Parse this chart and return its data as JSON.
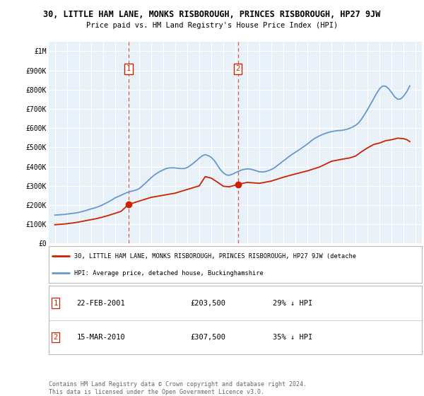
{
  "title": "30, LITTLE HAM LANE, MONKS RISBOROUGH, PRINCES RISBOROUGH, HP27 9JW",
  "subtitle": "Price paid vs. HM Land Registry's House Price Index (HPI)",
  "background_color": "#ffffff",
  "plot_bg_color": "#e8f0f8",
  "grid_color": "#ffffff",
  "ylim": [
    0,
    1050000
  ],
  "yticks": [
    0,
    100000,
    200000,
    300000,
    400000,
    500000,
    600000,
    700000,
    800000,
    900000,
    1000000
  ],
  "ytick_labels": [
    "£0",
    "£100K",
    "£200K",
    "£300K",
    "£400K",
    "£500K",
    "£600K",
    "£700K",
    "£800K",
    "£900K",
    "£1M"
  ],
  "xlim_start": 1994.5,
  "xlim_end": 2025.5,
  "xticks": [
    1995,
    1996,
    1997,
    1998,
    1999,
    2000,
    2001,
    2002,
    2003,
    2004,
    2005,
    2006,
    2007,
    2008,
    2009,
    2010,
    2011,
    2012,
    2013,
    2014,
    2015,
    2016,
    2017,
    2018,
    2019,
    2020,
    2021,
    2022,
    2023,
    2024,
    2025
  ],
  "hpi_color": "#6699cc",
  "price_color": "#cc2200",
  "vline_color": "#cc2200",
  "marker1_x": 2001.13,
  "marker1_y": 203500,
  "marker2_x": 2010.21,
  "marker2_y": 307500,
  "legend_price_label": "30, LITTLE HAM LANE, MONKS RISBOROUGH, PRINCES RISBOROUGH, HP27 9JW (detache",
  "legend_hpi_label": "HPI: Average price, detached house, Buckinghamshire",
  "annot1_label": "1",
  "annot2_label": "2",
  "table_row1": [
    "1",
    "22-FEB-2001",
    "£203,500",
    "29% ↓ HPI"
  ],
  "table_row2": [
    "2",
    "15-MAR-2010",
    "£307,500",
    "35% ↓ HPI"
  ],
  "footer": "Contains HM Land Registry data © Crown copyright and database right 2024.\nThis data is licensed under the Open Government Licence v3.0.",
  "hpi_x": [
    1995.0,
    1995.25,
    1995.5,
    1995.75,
    1996.0,
    1996.25,
    1996.5,
    1996.75,
    1997.0,
    1997.25,
    1997.5,
    1997.75,
    1998.0,
    1998.25,
    1998.5,
    1998.75,
    1999.0,
    1999.25,
    1999.5,
    1999.75,
    2000.0,
    2000.25,
    2000.5,
    2000.75,
    2001.0,
    2001.25,
    2001.5,
    2001.75,
    2002.0,
    2002.25,
    2002.5,
    2002.75,
    2003.0,
    2003.25,
    2003.5,
    2003.75,
    2004.0,
    2004.25,
    2004.5,
    2004.75,
    2005.0,
    2005.25,
    2005.5,
    2005.75,
    2006.0,
    2006.25,
    2006.5,
    2006.75,
    2007.0,
    2007.25,
    2007.5,
    2007.75,
    2008.0,
    2008.25,
    2008.5,
    2008.75,
    2009.0,
    2009.25,
    2009.5,
    2009.75,
    2010.0,
    2010.25,
    2010.5,
    2010.75,
    2011.0,
    2011.25,
    2011.5,
    2011.75,
    2012.0,
    2012.25,
    2012.5,
    2012.75,
    2013.0,
    2013.25,
    2013.5,
    2013.75,
    2014.0,
    2014.25,
    2014.5,
    2014.75,
    2015.0,
    2015.25,
    2015.5,
    2015.75,
    2016.0,
    2016.25,
    2016.5,
    2016.75,
    2017.0,
    2017.25,
    2017.5,
    2017.75,
    2018.0,
    2018.25,
    2018.5,
    2018.75,
    2019.0,
    2019.25,
    2019.5,
    2019.75,
    2020.0,
    2020.25,
    2020.5,
    2020.75,
    2021.0,
    2021.25,
    2021.5,
    2021.75,
    2022.0,
    2022.25,
    2022.5,
    2022.75,
    2023.0,
    2023.25,
    2023.5,
    2023.75,
    2024.0,
    2024.25,
    2024.5
  ],
  "hpi_y": [
    148000,
    149000,
    150000,
    151000,
    153000,
    155000,
    157000,
    159000,
    162000,
    166000,
    170000,
    175000,
    180000,
    184000,
    189000,
    195000,
    202000,
    210000,
    218000,
    227000,
    237000,
    244000,
    251000,
    258000,
    265000,
    270000,
    274000,
    278000,
    285000,
    298000,
    312000,
    327000,
    342000,
    355000,
    366000,
    375000,
    383000,
    390000,
    393000,
    394000,
    393000,
    391000,
    390000,
    390000,
    395000,
    405000,
    417000,
    430000,
    444000,
    456000,
    462000,
    457000,
    448000,
    432000,
    408000,
    385000,
    368000,
    357000,
    355000,
    360000,
    368000,
    375000,
    382000,
    386000,
    388000,
    387000,
    383000,
    378000,
    373000,
    372000,
    374000,
    379000,
    385000,
    394000,
    406000,
    418000,
    430000,
    442000,
    454000,
    465000,
    475000,
    485000,
    496000,
    507000,
    518000,
    531000,
    543000,
    552000,
    560000,
    567000,
    573000,
    578000,
    582000,
    585000,
    587000,
    588000,
    590000,
    594000,
    599000,
    606000,
    615000,
    628000,
    648000,
    672000,
    698000,
    726000,
    754000,
    782000,
    806000,
    819000,
    818000,
    804000,
    784000,
    762000,
    750000,
    752000,
    768000,
    790000,
    820000
  ],
  "price_x": [
    1995.0,
    1995.5,
    1996.0,
    1996.5,
    1997.0,
    1997.5,
    1998.0,
    1998.5,
    1999.0,
    1999.5,
    2000.0,
    2000.5,
    2001.13,
    2003.0,
    2005.0,
    2007.0,
    2007.5,
    2008.0,
    2008.5,
    2009.0,
    2009.5,
    2010.21,
    2011.0,
    2012.0,
    2013.0,
    2014.0,
    2015.0,
    2016.0,
    2017.0,
    2018.0,
    2019.0,
    2019.5,
    2020.0,
    2020.5,
    2021.0,
    2021.5,
    2022.0,
    2022.5,
    2023.0,
    2023.5,
    2024.0,
    2024.25,
    2024.5
  ],
  "price_y": [
    98000,
    100000,
    103000,
    107000,
    112000,
    118000,
    124000,
    130000,
    138000,
    147000,
    157000,
    167000,
    203500,
    240000,
    262000,
    300000,
    348000,
    340000,
    320000,
    298000,
    295000,
    307500,
    318000,
    313000,
    325000,
    345000,
    362000,
    378000,
    398000,
    428000,
    440000,
    445000,
    455000,
    478000,
    498000,
    515000,
    523000,
    535000,
    540000,
    548000,
    545000,
    540000,
    530000
  ]
}
